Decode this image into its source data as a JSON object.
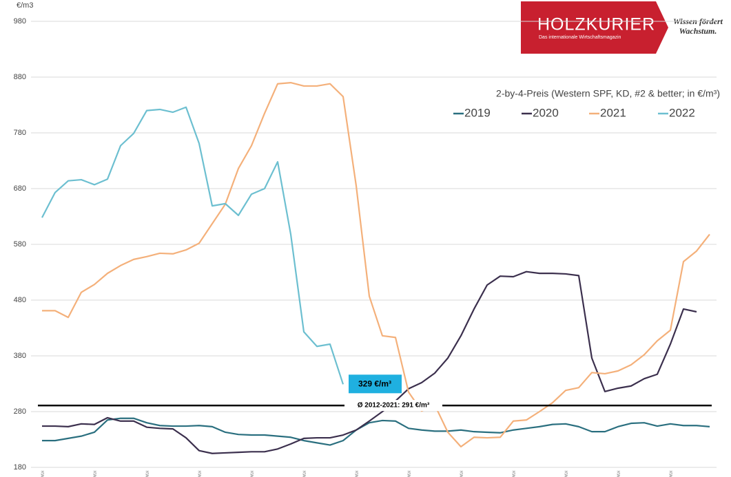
{
  "chart_data": {
    "type": "line",
    "y_unit": "€/m3",
    "subtitle": "2-by-4-Preis (Western SPF, KD, #2 & better; in €/m³)",
    "logo": {
      "name": "HOLZKURIER",
      "tagline": "Das internationale Wirtschaftsmagazin",
      "slogan": "Wissen fördert Wachstum."
    },
    "categories": [
      "KW 1",
      null,
      null,
      null,
      "KW 5",
      null,
      null,
      null,
      "KW 9",
      null,
      null,
      null,
      "KW 13",
      null,
      null,
      null,
      "KW 17",
      null,
      null,
      null,
      "KW 21",
      null,
      null,
      null,
      "KW 25",
      null,
      null,
      null,
      "KW 29",
      null,
      null,
      null,
      "KW 33",
      null,
      null,
      null,
      "KW 37",
      null,
      null,
      null,
      "KW 41",
      null,
      null,
      null,
      "KW 45",
      null,
      null,
      null,
      "KW 49",
      null,
      null,
      null
    ],
    "series": [
      {
        "name": "2019",
        "color": "#2a6f7f",
        "values": [
          228,
          228,
          232,
          236,
          243,
          265,
          268,
          268,
          260,
          255,
          254,
          254,
          255,
          253,
          243,
          239,
          238,
          238,
          236,
          234,
          228,
          224,
          220,
          228,
          247,
          260,
          264,
          263,
          250,
          247,
          245,
          245,
          247,
          244,
          243,
          242,
          247,
          250,
          253,
          257,
          258,
          253,
          244,
          244,
          253,
          259,
          260,
          254,
          258,
          255,
          255,
          253
        ]
      },
      {
        "name": "2020",
        "color": "#3b2f4d",
        "values": [
          254,
          254,
          253,
          258,
          257,
          269,
          263,
          263,
          252,
          250,
          249,
          233,
          210,
          205,
          206,
          207,
          208,
          208,
          213,
          222,
          232,
          233,
          233,
          238,
          247,
          263,
          280,
          299,
          321,
          332,
          349,
          376,
          416,
          464,
          507,
          523,
          522,
          531,
          528,
          528,
          527,
          524,
          376,
          316,
          322,
          326,
          339,
          347,
          401,
          464,
          459,
          null
        ]
      },
      {
        "name": "2021",
        "color": "#f4b07a",
        "values": [
          461,
          461,
          449,
          494,
          508,
          528,
          542,
          553,
          558,
          564,
          563,
          570,
          582,
          617,
          652,
          716,
          757,
          815,
          868,
          870,
          864,
          864,
          868,
          845,
          685,
          487,
          416,
          413,
          315,
          281,
          292,
          243,
          217,
          234,
          233,
          234,
          263,
          265,
          280,
          296,
          318,
          323,
          350,
          348,
          353,
          364,
          382,
          407,
          426,
          549,
          568,
          598
        ]
      },
      {
        "name": "2022",
        "color": "#6cbfd0",
        "values": [
          628,
          673,
          694,
          696,
          687,
          697,
          757,
          779,
          820,
          822,
          817,
          826,
          761,
          649,
          653,
          632,
          670,
          680,
          728,
          598,
          423,
          397,
          401,
          329,
          null,
          null,
          null,
          null,
          null,
          null,
          null,
          null,
          null,
          null,
          null,
          null,
          null,
          null,
          null,
          null,
          null,
          null,
          null,
          null,
          null,
          null,
          null,
          null,
          null,
          null,
          null,
          null
        ],
        "value_labels": [
          null,
          null,
          null,
          null,
          null,
          null,
          null,
          null,
          null,
          null,
          null,
          null,
          null,
          null,
          null,
          null,
          null,
          null,
          null,
          null,
          null,
          null,
          null,
          "329 €/m³",
          null,
          null,
          null,
          null,
          null,
          null,
          null,
          null,
          null,
          null,
          null,
          null,
          null,
          null,
          null,
          null,
          null,
          null,
          null,
          null,
          null,
          null,
          null,
          null,
          null,
          null,
          null,
          null
        ]
      }
    ],
    "average": {
      "value": 291,
      "label": "Ø 2012-2021: 291 €/m³"
    },
    "ylim": [
      180,
      980
    ],
    "yticks": [
      180,
      280,
      380,
      480,
      580,
      680,
      780,
      880,
      980
    ],
    "grid": true,
    "legend": "upper right"
  }
}
